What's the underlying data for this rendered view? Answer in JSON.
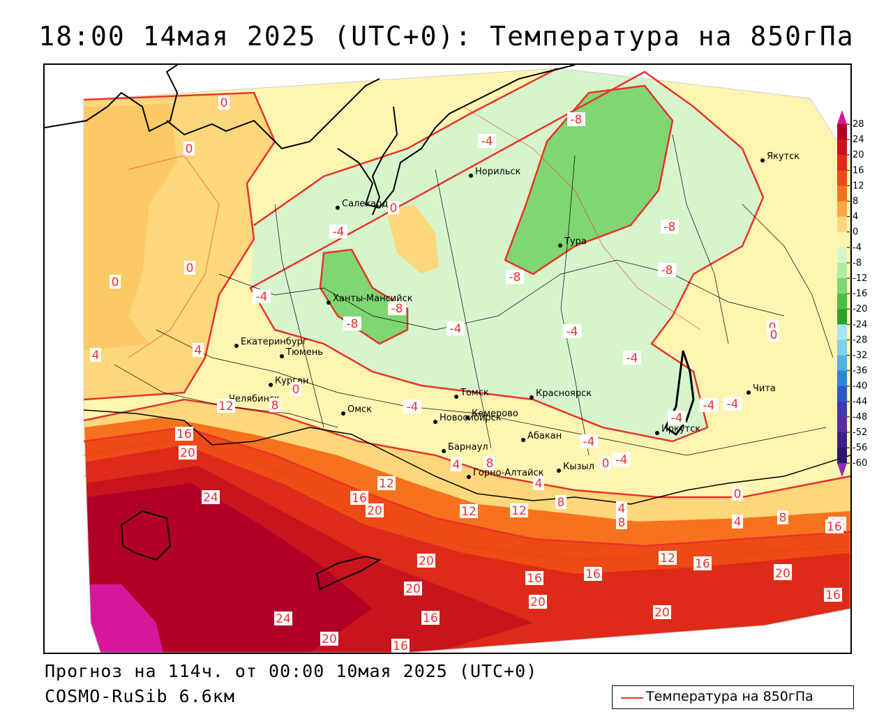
{
  "title": "18:00 14мая 2025 (UTC+0): Температура на 850гПа",
  "footer": {
    "forecast": "Прогноз на 114ч. от 00:00 10мая 2025 (UTC+0)",
    "model": "COSMO-RuSib 6.6км"
  },
  "legend": {
    "label": "Температура на 850гПа",
    "line_color": "#e8322a"
  },
  "colorscale": {
    "ticks": [
      "28",
      "24",
      "20",
      "16",
      "12",
      "8",
      "4",
      "0",
      "-4",
      "-8",
      "-12",
      "-16",
      "-20",
      "-24",
      "-28",
      "-32",
      "-36",
      "-40",
      "-44",
      "-48",
      "-52",
      "-56",
      "-60"
    ],
    "colors": [
      "#b10026",
      "#c8141d",
      "#de2a18",
      "#ee4a15",
      "#f7721c",
      "#fca547",
      "#fdd77c",
      "#fff5b2",
      "#d7f5cc",
      "#b0eba5",
      "#7fd672",
      "#4bbf43",
      "#2aa12d",
      "#a9e4f5",
      "#7fd0ee",
      "#4fb2e4",
      "#2d86d2",
      "#3058c2",
      "#3d3aa9",
      "#5a2a9e",
      "#3b1f86",
      "#2c1670"
    ],
    "top_color": "#d6179a",
    "bottom_color": "#8e2fb0"
  },
  "cities": [
    {
      "name": "Норильск"
    },
    {
      "name": "Якутск"
    },
    {
      "name": "Салехард"
    },
    {
      "name": "Тура"
    },
    {
      "name": "Ханты-Мансийск"
    },
    {
      "name": "Екатеринбург"
    },
    {
      "name": "Тюмень"
    },
    {
      "name": "Челябинск"
    },
    {
      "name": "Курган"
    },
    {
      "name": "Омск"
    },
    {
      "name": "Томск"
    },
    {
      "name": "Красноярск"
    },
    {
      "name": "Новосибирск"
    },
    {
      "name": "Кемерово"
    },
    {
      "name": "Абакан"
    },
    {
      "name": "Барнаул"
    },
    {
      "name": "Горно-Алтайск"
    },
    {
      "name": "Кызыл"
    },
    {
      "name": "Иркутск"
    },
    {
      "name": "Чита"
    }
  ],
  "contour_labels": [
    "0",
    "0",
    "0",
    "0",
    "0",
    "0",
    "0",
    "0",
    "0",
    "0",
    "-4",
    "-4",
    "-4",
    "-4",
    "-4",
    "-4",
    "-4",
    "-4",
    "-4",
    "-4",
    "-4",
    "-4",
    "-8",
    "-8",
    "-8",
    "-8",
    "-8",
    "-8",
    "4",
    "4",
    "4",
    "4",
    "4",
    "4",
    "8",
    "8",
    "8",
    "8",
    "8",
    "12",
    "12",
    "12",
    "12",
    "12",
    "16",
    "16",
    "16",
    "16",
    "16",
    "16",
    "16",
    "16",
    "16",
    "16",
    "20",
    "20",
    "20",
    "20",
    "20",
    "20",
    "20",
    "20",
    "20",
    "24",
    "24"
  ]
}
